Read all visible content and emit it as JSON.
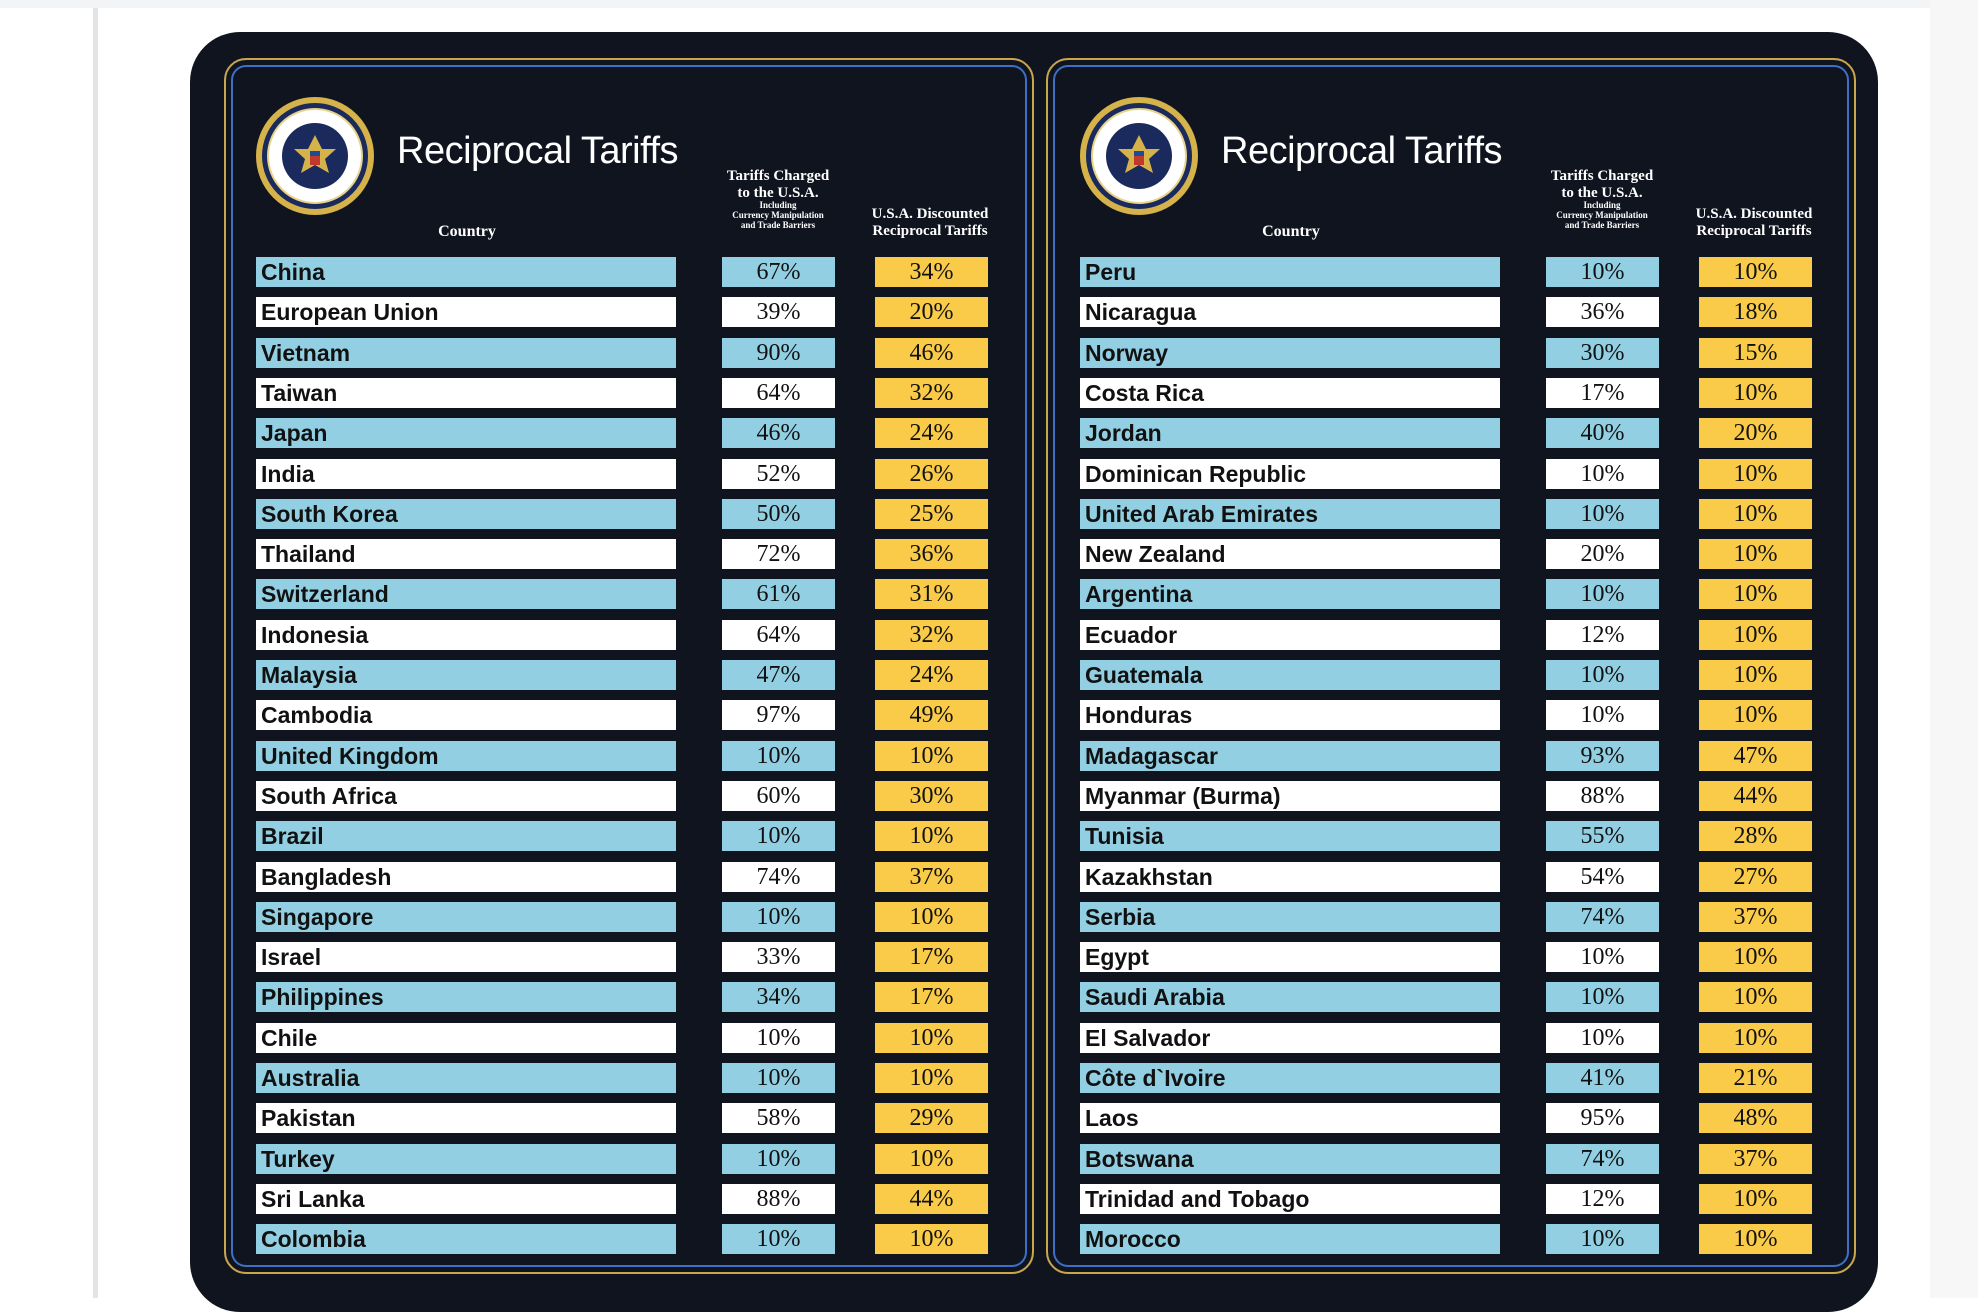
{
  "tables": [
    {
      "title": "Reciprocal Tariffs",
      "seal_text": "SEAL OF THE PRESIDENT OF THE UNITED STATES",
      "headers": {
        "country": "Country",
        "charged_line1": "Tariffs Charged",
        "charged_line2": "to the U.S.A.",
        "charged_line3": "Including",
        "charged_line4": "Currency Manipulation",
        "charged_line5": "and Trade Barriers",
        "discounted_line1": "U.S.A. Discounted",
        "discounted_line2": "Reciprocal Tariffs"
      },
      "rows": [
        {
          "country": "China",
          "charged": "67%",
          "discounted": "34%"
        },
        {
          "country": "European Union",
          "charged": "39%",
          "discounted": "20%"
        },
        {
          "country": "Vietnam",
          "charged": "90%",
          "discounted": "46%"
        },
        {
          "country": "Taiwan",
          "charged": "64%",
          "discounted": "32%"
        },
        {
          "country": "Japan",
          "charged": "46%",
          "discounted": "24%"
        },
        {
          "country": "India",
          "charged": "52%",
          "discounted": "26%"
        },
        {
          "country": "South Korea",
          "charged": "50%",
          "discounted": "25%"
        },
        {
          "country": "Thailand",
          "charged": "72%",
          "discounted": "36%"
        },
        {
          "country": "Switzerland",
          "charged": "61%",
          "discounted": "31%"
        },
        {
          "country": "Indonesia",
          "charged": "64%",
          "discounted": "32%"
        },
        {
          "country": "Malaysia",
          "charged": "47%",
          "discounted": "24%"
        },
        {
          "country": "Cambodia",
          "charged": "97%",
          "discounted": "49%"
        },
        {
          "country": "United Kingdom",
          "charged": "10%",
          "discounted": "10%"
        },
        {
          "country": "South Africa",
          "charged": "60%",
          "discounted": "30%"
        },
        {
          "country": "Brazil",
          "charged": "10%",
          "discounted": "10%"
        },
        {
          "country": "Bangladesh",
          "charged": "74%",
          "discounted": "37%"
        },
        {
          "country": "Singapore",
          "charged": "10%",
          "discounted": "10%"
        },
        {
          "country": "Israel",
          "charged": "33%",
          "discounted": "17%"
        },
        {
          "country": "Philippines",
          "charged": "34%",
          "discounted": "17%"
        },
        {
          "country": "Chile",
          "charged": "10%",
          "discounted": "10%"
        },
        {
          "country": "Australia",
          "charged": "10%",
          "discounted": "10%"
        },
        {
          "country": "Pakistan",
          "charged": "58%",
          "discounted": "29%"
        },
        {
          "country": "Turkey",
          "charged": "10%",
          "discounted": "10%"
        },
        {
          "country": "Sri Lanka",
          "charged": "88%",
          "discounted": "44%"
        },
        {
          "country": "Colombia",
          "charged": "10%",
          "discounted": "10%"
        }
      ]
    },
    {
      "title": "Reciprocal Tariffs",
      "seal_text": "SEAL OF THE PRESIDENT OF THE UNITED STATES",
      "headers": {
        "country": "Country",
        "charged_line1": "Tariffs Charged",
        "charged_line2": "to the U.S.A.",
        "charged_line3": "Including",
        "charged_line4": "Currency Manipulation",
        "charged_line5": "and Trade Barriers",
        "discounted_line1": "U.S.A. Discounted",
        "discounted_line2": "Reciprocal Tariffs"
      },
      "rows": [
        {
          "country": "Peru",
          "charged": "10%",
          "discounted": "10%"
        },
        {
          "country": "Nicaragua",
          "charged": "36%",
          "discounted": "18%"
        },
        {
          "country": "Norway",
          "charged": "30%",
          "discounted": "15%"
        },
        {
          "country": "Costa Rica",
          "charged": "17%",
          "discounted": "10%"
        },
        {
          "country": "Jordan",
          "charged": "40%",
          "discounted": "20%"
        },
        {
          "country": "Dominican Republic",
          "charged": "10%",
          "discounted": "10%"
        },
        {
          "country": "United Arab Emirates",
          "charged": "10%",
          "discounted": "10%"
        },
        {
          "country": "New Zealand",
          "charged": "20%",
          "discounted": "10%"
        },
        {
          "country": "Argentina",
          "charged": "10%",
          "discounted": "10%"
        },
        {
          "country": "Ecuador",
          "charged": "12%",
          "discounted": "10%"
        },
        {
          "country": "Guatemala",
          "charged": "10%",
          "discounted": "10%"
        },
        {
          "country": "Honduras",
          "charged": "10%",
          "discounted": "10%"
        },
        {
          "country": "Madagascar",
          "charged": "93%",
          "discounted": "47%"
        },
        {
          "country": "Myanmar (Burma)",
          "charged": "88%",
          "discounted": "44%"
        },
        {
          "country": "Tunisia",
          "charged": "55%",
          "discounted": "28%"
        },
        {
          "country": "Kazakhstan",
          "charged": "54%",
          "discounted": "27%"
        },
        {
          "country": "Serbia",
          "charged": "74%",
          "discounted": "37%"
        },
        {
          "country": "Egypt",
          "charged": "10%",
          "discounted": "10%"
        },
        {
          "country": "Saudi Arabia",
          "charged": "10%",
          "discounted": "10%"
        },
        {
          "country": "El Salvador",
          "charged": "10%",
          "discounted": "10%"
        },
        {
          "country": "Côte d`Ivoire",
          "charged": "41%",
          "discounted": "21%"
        },
        {
          "country": "Laos",
          "charged": "95%",
          "discounted": "48%"
        },
        {
          "country": "Botswana",
          "charged": "74%",
          "discounted": "37%"
        },
        {
          "country": "Trinidad and Tobago",
          "charged": "12%",
          "discounted": "10%"
        },
        {
          "country": "Morocco",
          "charged": "10%",
          "discounted": "10%"
        }
      ]
    }
  ],
  "colors": {
    "background": "#10141f",
    "row_blue": "#92cfe3",
    "row_white": "#ffffff",
    "discounted_yellow": "#f9cb48",
    "border_gold": "#c9a64a"
  }
}
